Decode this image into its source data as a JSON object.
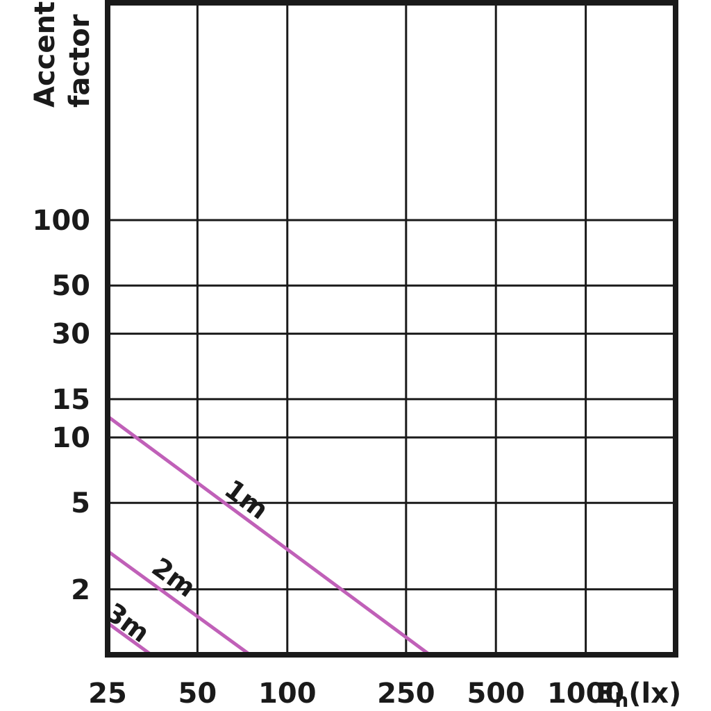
{
  "chart_data": {
    "type": "line",
    "x_scale": "log",
    "y_scale": "log",
    "grid": true,
    "legend": "none",
    "xlabel": "E",
    "xlabel_subscript": "h",
    "xlabel_unit": "(lx)",
    "ylabel_line1": "Accent",
    "ylabel_line2": "factor",
    "xlim": [
      25,
      2000
    ],
    "ylim": [
      1,
      1000
    ],
    "x_ticks": [
      {
        "value": 25,
        "label": "25"
      },
      {
        "value": 50,
        "label": "50"
      },
      {
        "value": 100,
        "label": "100"
      },
      {
        "value": 250,
        "label": "250"
      },
      {
        "value": 500,
        "label": "500"
      },
      {
        "value": 1000,
        "label": "1000"
      }
    ],
    "y_ticks": [
      {
        "value": 2,
        "label": "2"
      },
      {
        "value": 5,
        "label": "5"
      },
      {
        "value": 10,
        "label": "10"
      },
      {
        "value": 15,
        "label": "15"
      },
      {
        "value": 30,
        "label": "30"
      },
      {
        "value": 50,
        "label": "50"
      },
      {
        "value": 100,
        "label": "100"
      }
    ],
    "series": [
      {
        "name": "1m",
        "color": "#c060b8",
        "label_pos": {
          "x": 70,
          "y": 4.8
        },
        "points": [
          [
            25,
            12.5
          ],
          [
            300,
            1
          ]
        ]
      },
      {
        "name": "2m",
        "color": "#c060b8",
        "label_pos": {
          "x": 40,
          "y": 2.1
        },
        "points": [
          [
            25,
            3
          ],
          [
            75,
            1
          ]
        ]
      },
      {
        "name": "3m",
        "color": "#c060b8",
        "label_pos": {
          "x": 28,
          "y": 1.3
        },
        "points": [
          [
            25,
            1.4
          ],
          [
            35,
            1
          ]
        ]
      }
    ]
  }
}
